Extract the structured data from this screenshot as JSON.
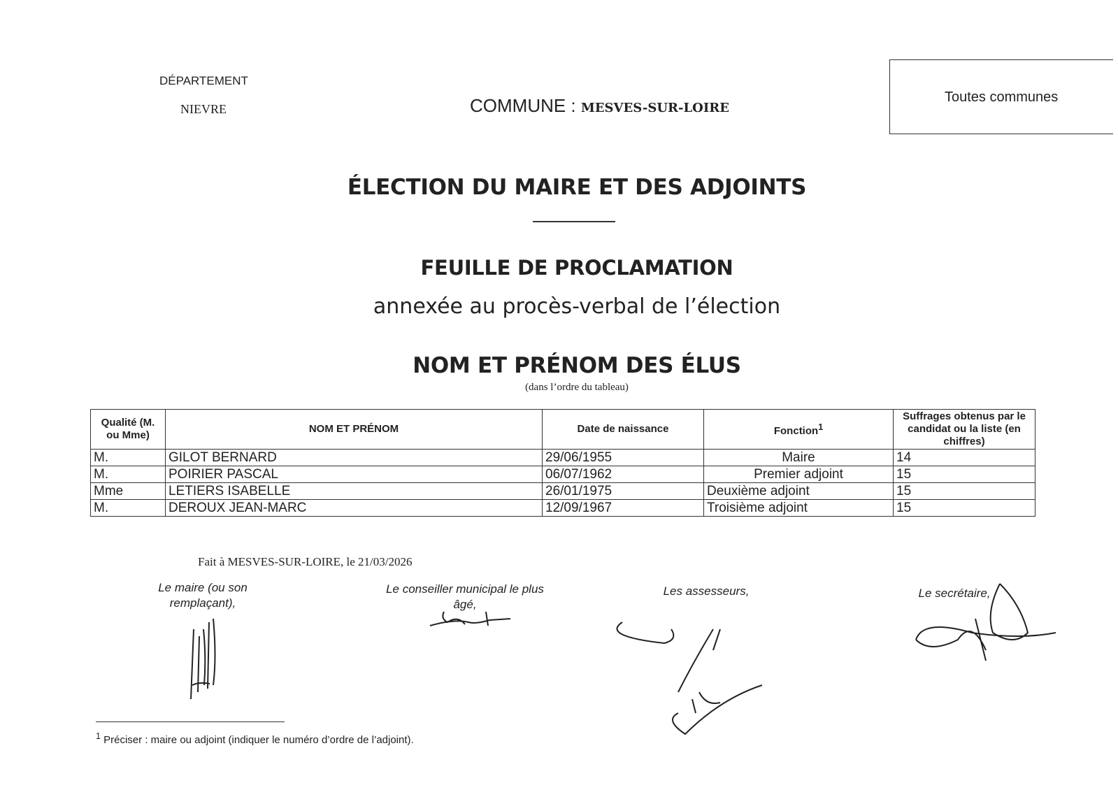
{
  "header": {
    "department_label": "DÉPARTEMENT",
    "department_value": "NIEVRE",
    "commune_label": "COMMUNE :",
    "commune_value": "MESVES-SUR-LOIRE",
    "box_label": "Toutes communes"
  },
  "titles": {
    "main": "ÉLECTION DU MAIRE ET DES ADJOINTS",
    "sheet": "FEUILLE DE PROCLAMATION",
    "annex": "annexée au procès-verbal de l’élection",
    "names": "NOM ET PRÉNOM DES ÉLUS",
    "order_note": "(dans l’ordre du tableau)"
  },
  "table": {
    "headers": [
      "Qualité (M. ou Mme)",
      "NOM ET PRÉNOM",
      "Date de naissance",
      "Fonction",
      "Suffrages obtenus par le candidat ou la liste (en chiffres)"
    ],
    "fonction_footnote_mark": "1",
    "rows": [
      {
        "qualite": "M.",
        "nom": "GILOT BERNARD",
        "date": "29/06/1955",
        "fonction": "Maire",
        "suffrages": "14"
      },
      {
        "qualite": "M.",
        "nom": "POIRIER PASCAL",
        "date": "06/07/1962",
        "fonction": "Premier adjoint",
        "suffrages": "15"
      },
      {
        "qualite": "Mme",
        "nom": "LETIERS ISABELLE",
        "date": "26/01/1975",
        "fonction": "Deuxième adjoint",
        "suffrages": "15"
      },
      {
        "qualite": "M.",
        "nom": "DEROUX JEAN-MARC",
        "date": "12/09/1967",
        "fonction": "Troisième adjoint",
        "suffrages": "15"
      }
    ]
  },
  "signatures": {
    "place_date": "Fait à MESVES-SUR-LOIRE, le 21/03/2026",
    "maire": "Le maire (ou son remplaçant),",
    "conseiller": "Le conseiller municipal le plus âgé,",
    "assesseurs": "Les assesseurs,",
    "secretaire": "Le secrétaire,"
  },
  "footnote": {
    "mark": "1",
    "text": "Préciser : maire ou adjoint (indiquer le numéro d’ordre de l’adjoint)."
  }
}
